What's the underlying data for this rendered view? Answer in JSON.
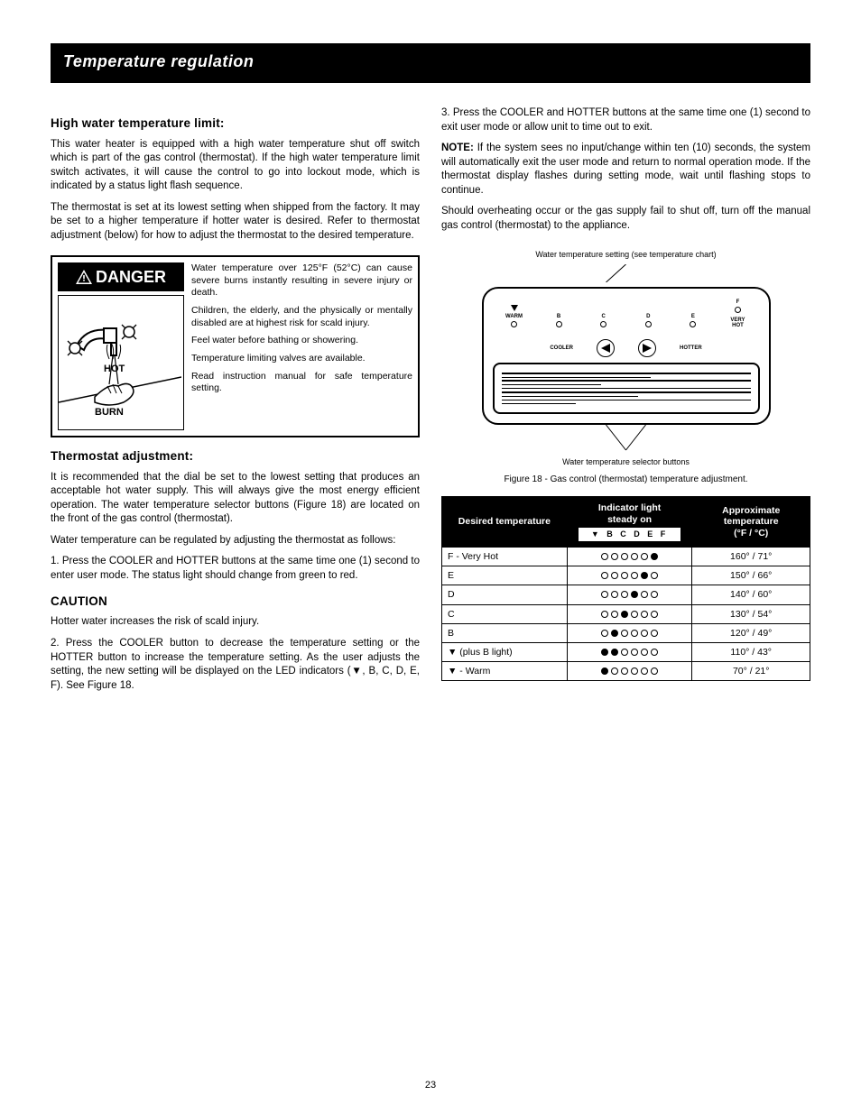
{
  "page": {
    "header": "Temperature regulation",
    "number": "23"
  },
  "left": {
    "h_hightemp": "High water temperature limit:",
    "p_hl1": "This water heater is equipped with a high water temperature shut off switch which is part of the gas control (thermostat). If the high water temperature limit switch activates, it will cause the control to go into lockout mode, which is indicated by a status light flash sequence.",
    "p_hl2": "The thermostat is set at its lowest setting when shipped from the factory. It may be set to a higher temperature if hotter water is desired. Refer to thermostat adjustment (below) for how to adjust the thermostat to the desired temperature.",
    "danger": {
      "title": "DANGER",
      "d1": "Water temperature over 125°F (52°C) can cause severe burns instantly resulting in severe injury or death.",
      "d2": "Children, the elderly, and the physically or mentally disabled are at highest risk for scald injury.",
      "d3": "Feel water before bathing or showering.",
      "d4": "Temperature limiting valves are available.",
      "d5": "Read instruction manual for safe temperature setting."
    },
    "h_adjust": "Thermostat adjustment:",
    "p_a1": "It is recommended that the dial be set to the lowest setting that produces an acceptable hot water supply. This will always give the most energy efficient operation. The water temperature selector buttons (Figure 18) are located on the front of the gas control (thermostat).",
    "p_a2": "Water temperature can be regulated by adjusting the thermostat as follows:",
    "b1": "1. Press the COOLER and HOTTER buttons at the same time one (1) second to enter user mode. The status light should change from green to red.",
    "h_caution": "CAUTION",
    "p_c1": "Hotter water increases the risk of scald injury.",
    "b2": "2. Press the COOLER       button to decrease the temperature setting or the HOTTER       button to increase the temperature setting. As the user adjusts the setting, the new setting will be displayed on the LED indicators (▼, B, C, D, E, F). See Figure 18."
  },
  "right": {
    "b3": "3. Press the COOLER and HOTTER buttons at the same time one (1) second to exit user mode or allow unit to time out to exit.",
    "note_label": "NOTE:",
    "note": "If the system sees no input/change within ten (10) seconds, the system will automatically exit the user mode and return to normal operation mode. If the thermostat display flashes during setting mode, wait until flashing stops to continue.",
    "p_note2": "Should overheating occur or the gas supply fail to shut off, turn off the manual gas control (thermostat) to the appliance.",
    "fig_label": "Figure 18 - Gas control (thermostat) temperature adjustment.",
    "callout_top": "Water temperature setting (see temperature chart)",
    "callout_bottom": "Water temperature selector buttons",
    "panel": {
      "leds": [
        "WARM",
        "B",
        "C",
        "D",
        "E",
        "F"
      ],
      "very_hot": "VERY HOT",
      "cooler": "COOLER",
      "hotter": "HOTTER"
    },
    "table": {
      "h1": "Desired temperature",
      "h2_line1": "Indicator light",
      "h2_line2": "steady on",
      "h2_leds": "▼ B C D E F",
      "h3_line1": "Approximate",
      "h3_line2": "temperature",
      "h3_line3": "(°F / °C)",
      "rows": [
        {
          "label": "F - Very Hot",
          "pattern": "000001",
          "temp": "160° / 71°"
        },
        {
          "label": "E",
          "pattern": "000010",
          "temp": "150° / 66°"
        },
        {
          "label": "D",
          "pattern": "000100",
          "temp": "140° / 60°"
        },
        {
          "label": "C",
          "pattern": "001000",
          "temp": "130° / 54°"
        },
        {
          "label": "B",
          "pattern": "010000",
          "temp": "120° / 49°"
        },
        {
          "label": "▼ (plus B light)",
          "pattern": "110000",
          "temp": "110° / 43°"
        },
        {
          "label": "▼ - Warm",
          "pattern": "100000",
          "temp": "70° / 21°"
        }
      ]
    }
  }
}
